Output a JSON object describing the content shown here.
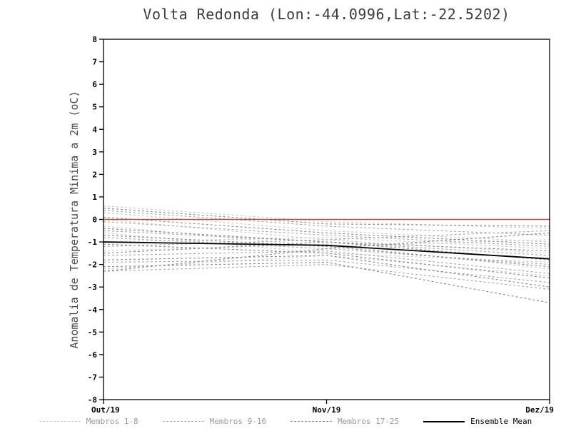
{
  "title": "Volta Redonda (Lon:-44.0996,Lat:-22.5202)",
  "ylabel": "Anomalia de Temperatura Minima a 2m (oC)",
  "chart_data": {
    "type": "line",
    "x": [
      "Out/19",
      "Nov/19",
      "Dez/19"
    ],
    "ylim": [
      -8,
      8
    ],
    "ytick_step": 1,
    "grid": false,
    "legend_position": "bottom",
    "zero_line": {
      "value": 0,
      "color": "#e23a2e"
    },
    "groups": [
      {
        "name": "Membros 1-8",
        "color": "#c9c9c9",
        "style": "dashed",
        "series": [
          [
            0.6,
            -0.1,
            -0.4
          ],
          [
            0.3,
            -0.5,
            -1.0
          ],
          [
            0.0,
            -0.9,
            -1.5
          ],
          [
            -0.3,
            -1.2,
            -0.9
          ],
          [
            -0.6,
            -1.5,
            -1.9
          ],
          [
            -1.0,
            -0.8,
            -1.3
          ],
          [
            -1.4,
            -1.1,
            -2.2
          ],
          [
            -2.2,
            -1.6,
            -2.5
          ]
        ]
      },
      {
        "name": "Membros 9-16",
        "color": "#a8a8a8",
        "style": "dashed",
        "series": [
          [
            0.4,
            -0.3,
            -0.7
          ],
          [
            -0.1,
            -0.7,
            -1.2
          ],
          [
            -0.5,
            -1.0,
            -1.6
          ],
          [
            -0.8,
            -1.3,
            -2.0
          ],
          [
            -1.2,
            -0.9,
            -0.5
          ],
          [
            -1.6,
            -1.4,
            -2.4
          ],
          [
            -1.9,
            -1.8,
            -2.8
          ],
          [
            -2.3,
            -2.0,
            -3.1
          ]
        ]
      },
      {
        "name": "Membros 17-25",
        "color": "#8a8a8a",
        "style": "dashed",
        "series": [
          [
            0.5,
            -0.2,
            -0.3
          ],
          [
            0.1,
            -0.6,
            -1.1
          ],
          [
            -0.4,
            -1.0,
            -1.8
          ],
          [
            -0.7,
            -1.2,
            -2.1
          ],
          [
            -1.1,
            -1.5,
            -2.6
          ],
          [
            -1.5,
            -1.0,
            -1.4
          ],
          [
            -1.8,
            -1.6,
            -3.0
          ],
          [
            -2.1,
            -1.9,
            -3.7
          ],
          [
            -2.3,
            -1.3,
            -0.6
          ]
        ]
      }
    ],
    "mean": {
      "name": "Ensemble Mean",
      "color": "#000000",
      "style": "solid",
      "values": [
        -1.0,
        -1.15,
        -1.75
      ]
    }
  },
  "legend": {
    "items": [
      {
        "label": "Membros 1-8",
        "color": "#c9c9c9",
        "dashed": true
      },
      {
        "label": "Membros 9-16",
        "color": "#a8a8a8",
        "dashed": true
      },
      {
        "label": "Membros 17-25",
        "color": "#8a8a8a",
        "dashed": true
      },
      {
        "label": "Ensemble Mean",
        "color": "#000000",
        "dashed": false
      }
    ]
  }
}
